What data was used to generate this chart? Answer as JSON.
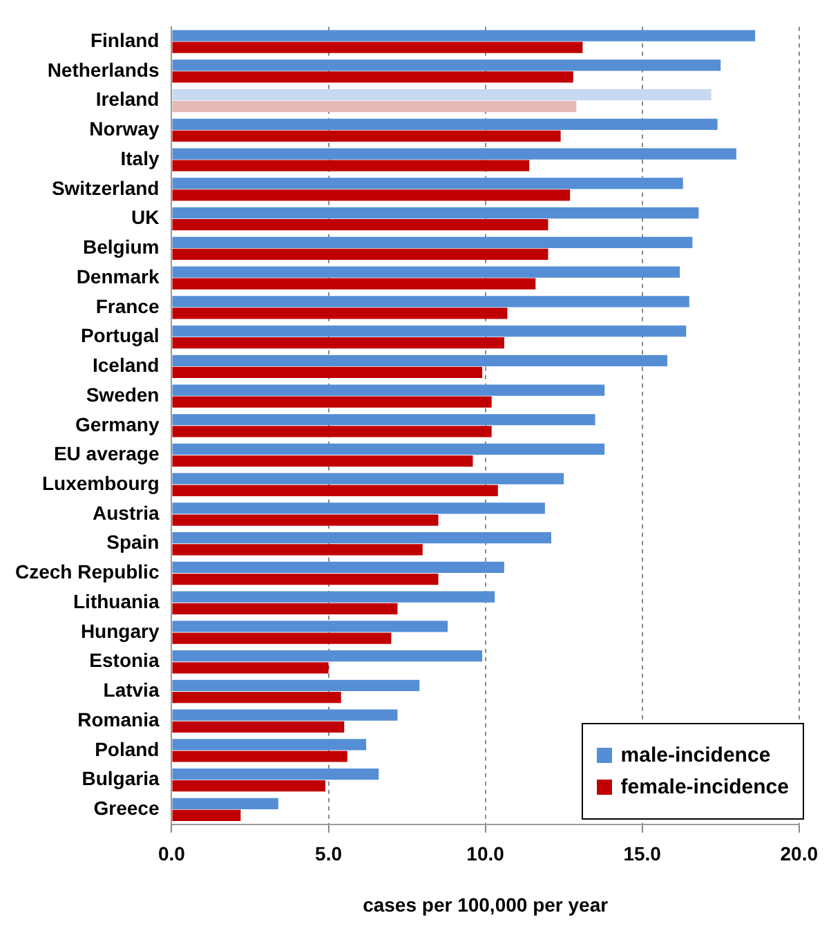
{
  "chart_data": {
    "type": "bar",
    "orientation": "horizontal",
    "xlabel": "cases per 100,000 per year",
    "categories": [
      "Finland",
      "Netherlands",
      "Ireland",
      "Norway",
      "Italy",
      "Switzerland",
      "UK",
      "Belgium",
      "Denmark",
      "France",
      "Portugal",
      "Iceland",
      "Sweden",
      "Germany",
      "EU average",
      "Luxembourg",
      "Austria",
      "Spain",
      "Czech Republic",
      "Lithuania",
      "Hungary",
      "Estonia",
      "Latvia",
      "Romania",
      "Poland",
      "Bulgaria",
      "Greece"
    ],
    "series": [
      {
        "name": "male-incidence",
        "color": "#558ed5",
        "colors": [
          "#558ed5",
          "#558ed5",
          "#c6d9f1",
          "#558ed5",
          "#558ed5",
          "#558ed5",
          "#558ed5",
          "#558ed5",
          "#558ed5",
          "#558ed5",
          "#558ed5",
          "#558ed5",
          "#558ed5",
          "#558ed5",
          "#558ed5",
          "#558ed5",
          "#558ed5",
          "#558ed5",
          "#558ed5",
          "#558ed5",
          "#558ed5",
          "#558ed5",
          "#558ed5",
          "#558ed5",
          "#558ed5",
          "#558ed5",
          "#558ed5"
        ],
        "values": [
          18.6,
          17.5,
          17.2,
          17.4,
          18.0,
          16.3,
          16.8,
          16.6,
          16.2,
          16.5,
          16.4,
          15.8,
          13.8,
          13.5,
          13.8,
          12.5,
          11.9,
          12.1,
          10.6,
          10.3,
          8.8,
          9.9,
          7.9,
          7.2,
          6.2,
          6.6,
          3.4
        ]
      },
      {
        "name": "female-incidence",
        "color": "#c00000",
        "colors": [
          "#c00000",
          "#c00000",
          "#e6b9b8",
          "#c00000",
          "#c00000",
          "#c00000",
          "#c00000",
          "#c00000",
          "#c00000",
          "#c00000",
          "#c00000",
          "#c00000",
          "#c00000",
          "#c00000",
          "#c00000",
          "#c00000",
          "#c00000",
          "#c00000",
          "#c00000",
          "#c00000",
          "#c00000",
          "#c00000",
          "#c00000",
          "#c00000",
          "#c00000",
          "#c00000",
          "#c00000"
        ],
        "values": [
          13.1,
          12.8,
          12.9,
          12.4,
          11.4,
          12.7,
          12.0,
          12.0,
          11.6,
          10.7,
          10.6,
          9.9,
          10.2,
          10.2,
          9.6,
          10.4,
          8.5,
          8.0,
          8.5,
          7.2,
          7.0,
          5.0,
          5.4,
          5.5,
          5.6,
          4.9,
          2.2
        ]
      }
    ],
    "xlim": [
      0,
      20
    ],
    "xticks": [
      {
        "value": 0,
        "label": "0.0"
      },
      {
        "value": 5,
        "label": "5.0"
      },
      {
        "value": 10,
        "label": "10.0"
      },
      {
        "value": 15,
        "label": "15.0"
      },
      {
        "value": 20,
        "label": "20.0"
      }
    ],
    "grid": "x",
    "legend": "bottom right"
  }
}
